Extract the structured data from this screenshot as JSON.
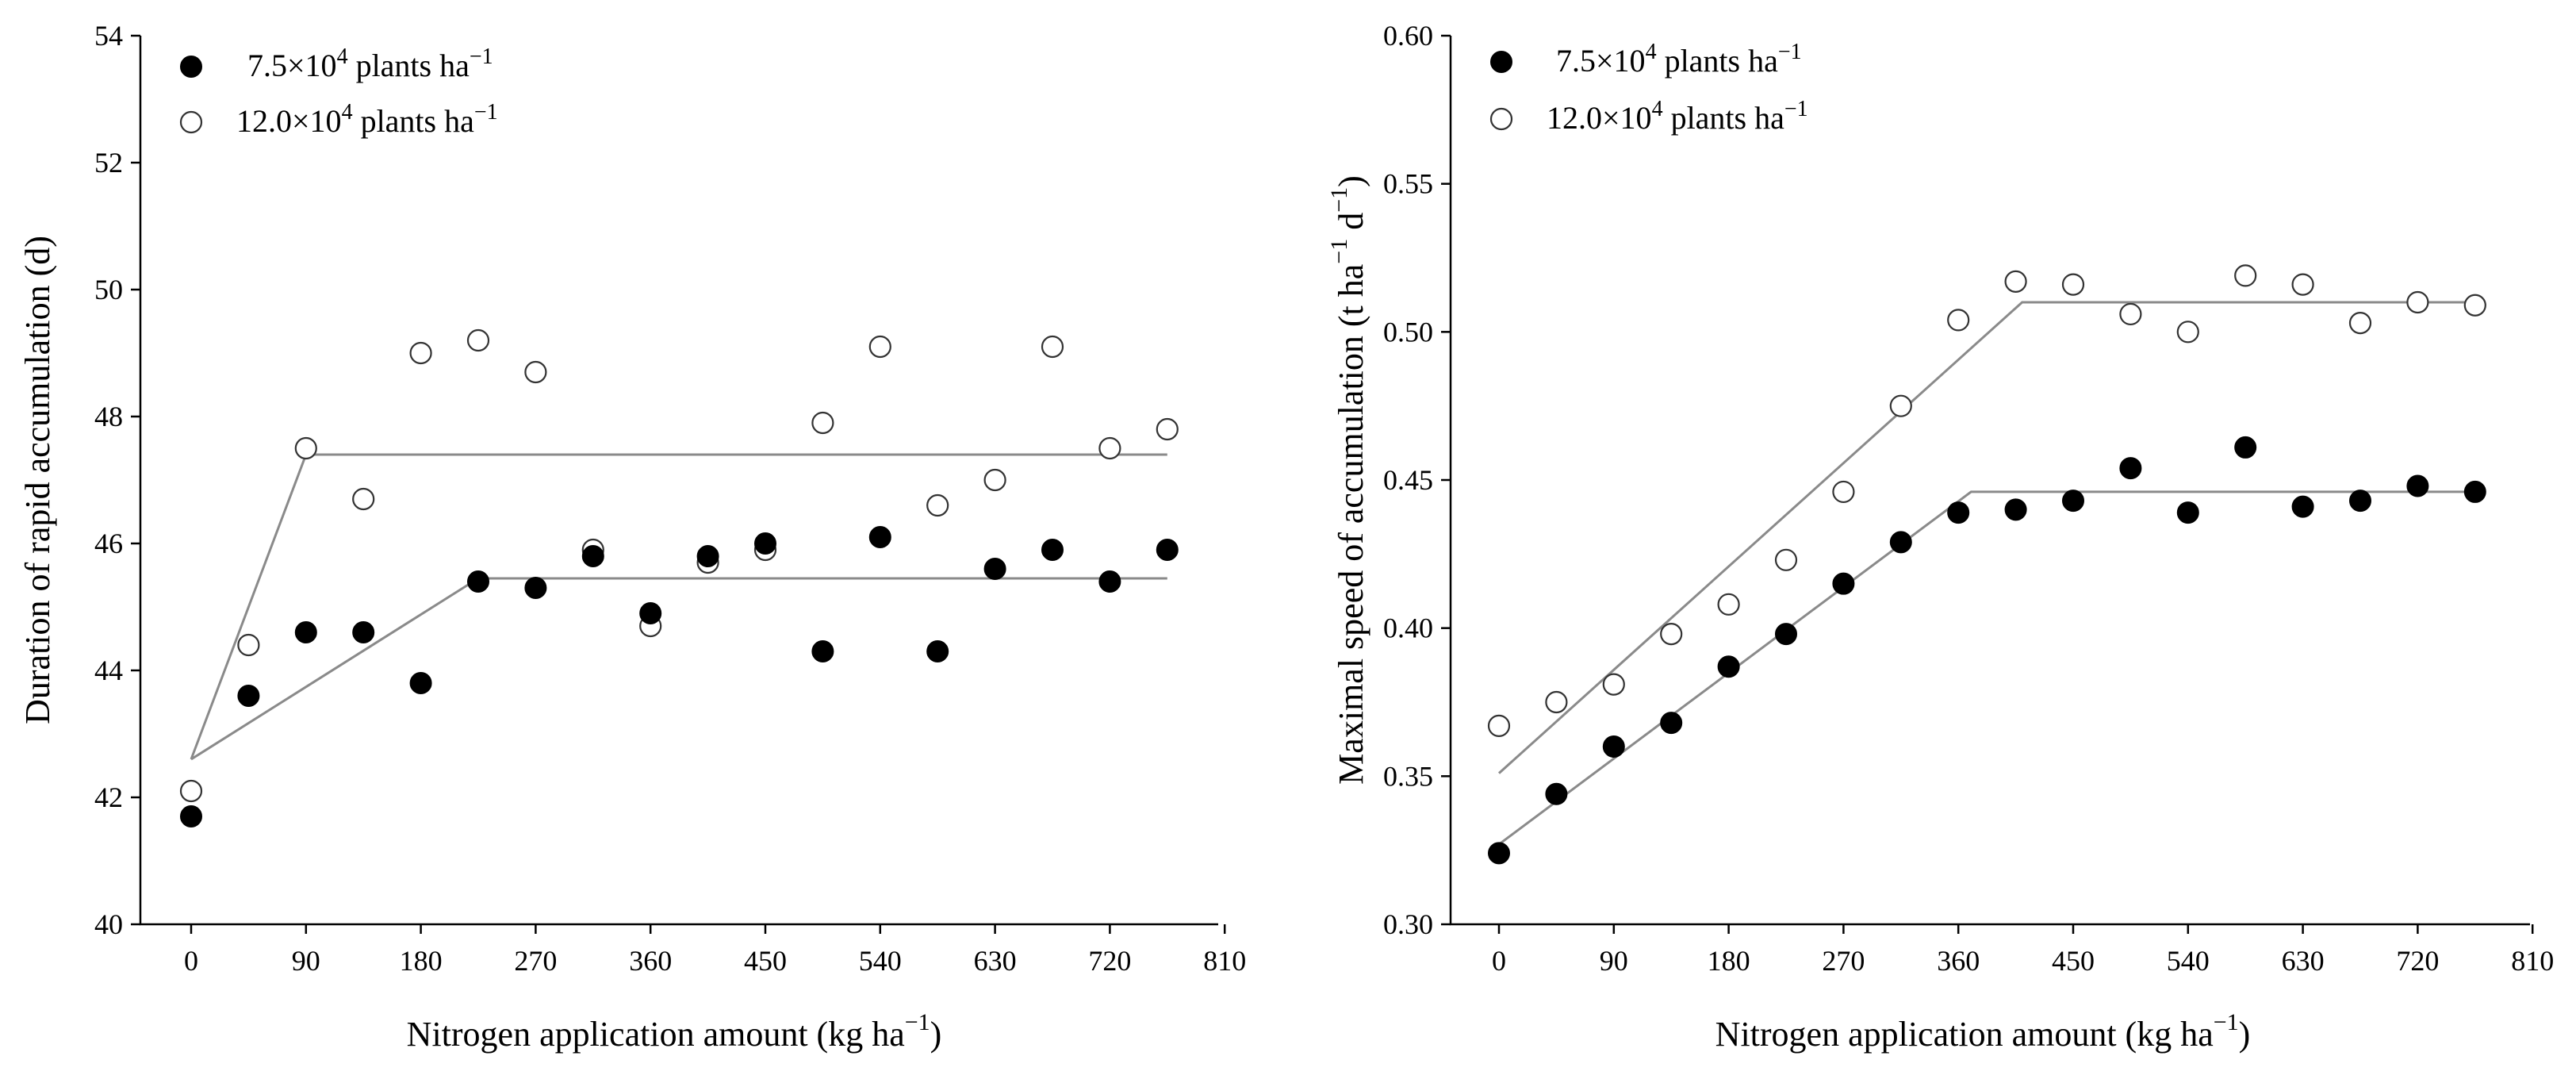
{
  "chart_data": [
    {
      "type": "scatter",
      "xlabel": "Nitrogen application amount (kg ha",
      "xlabel_sup": "−1",
      "xlabel_end": ")",
      "ylabel": "Duration of rapid accumulation (d)",
      "xlim": [
        -30,
        810
      ],
      "ylim": [
        40,
        54
      ],
      "xticks": [
        "0",
        "90",
        "180",
        "270",
        "360",
        "450",
        "540",
        "630",
        "720",
        "810"
      ],
      "yticks": [
        "40",
        "42",
        "44",
        "46",
        "48",
        "50",
        "52",
        "54"
      ],
      "x": [
        0,
        45,
        90,
        135,
        180,
        225,
        270,
        315,
        360,
        405,
        450,
        495,
        540,
        585,
        630,
        675,
        720,
        765
      ],
      "series": [
        {
          "name": "7.5×10",
          "name_sup": "4",
          "name_end": " plants ha",
          "name_end_sup": "−1",
          "marker": "filled-circle",
          "values": [
            41.7,
            43.6,
            44.6,
            44.6,
            43.8,
            45.4,
            45.3,
            45.8,
            44.9,
            45.8,
            46.0,
            44.3,
            46.1,
            44.3,
            45.6,
            45.9,
            45.4,
            45.9
          ],
          "fit": [
            [
              0,
              42.6
            ],
            [
              225,
              45.45
            ],
            [
              765,
              45.45
            ]
          ]
        },
        {
          "name": "12.0×10",
          "name_sup": "4",
          "name_end": " plants ha",
          "name_end_sup": "−1",
          "marker": "open-circle",
          "values": [
            42.1,
            44.4,
            47.5,
            46.7,
            49.0,
            49.2,
            48.7,
            45.9,
            44.7,
            45.7,
            45.9,
            47.9,
            49.1,
            46.6,
            47.0,
            49.1,
            47.5,
            47.8
          ],
          "fit": [
            [
              0,
              42.6
            ],
            [
              90,
              47.4
            ],
            [
              765,
              47.4
            ]
          ]
        }
      ]
    },
    {
      "type": "scatter",
      "xlabel": "Nitrogen application amount (kg ha",
      "xlabel_sup": "−1",
      "xlabel_end": ")",
      "ylabel": "Maximal speed of accumulation (t ha",
      "ylabel_sup1": "−1",
      "ylabel_mid": " d",
      "ylabel_sup2": "−1",
      "ylabel_end": ")",
      "xlim": [
        -30,
        810
      ],
      "ylim": [
        0.3,
        0.6
      ],
      "xticks": [
        "0",
        "90",
        "180",
        "270",
        "360",
        "450",
        "540",
        "630",
        "720",
        "810"
      ],
      "yticks": [
        "0.30",
        "0.35",
        "0.40",
        "0.45",
        "0.50",
        "0.55",
        "0.60"
      ],
      "x": [
        0,
        45,
        90,
        135,
        180,
        225,
        270,
        315,
        360,
        405,
        450,
        495,
        540,
        585,
        630,
        675,
        720,
        765
      ],
      "series": [
        {
          "name": "7.5×10",
          "name_sup": "4",
          "name_end": " plants ha",
          "name_end_sup": "−1",
          "marker": "filled-circle",
          "values": [
            0.324,
            0.344,
            0.36,
            0.368,
            0.387,
            0.398,
            0.415,
            0.429,
            0.439,
            0.44,
            0.443,
            0.454,
            0.439,
            0.461,
            0.441,
            0.443,
            0.448,
            0.446
          ],
          "fit": [
            [
              0,
              0.327
            ],
            [
              370,
              0.446
            ],
            [
              765,
              0.446
            ]
          ]
        },
        {
          "name": "12.0×10",
          "name_sup": "4",
          "name_end": " plants ha",
          "name_end_sup": "−1",
          "marker": "open-circle",
          "values": [
            0.367,
            0.375,
            0.381,
            0.398,
            0.408,
            0.423,
            0.446,
            0.475,
            0.504,
            0.517,
            0.516,
            0.506,
            0.5,
            0.519,
            0.516,
            0.503,
            0.51,
            0.509
          ],
          "fit": [
            [
              0,
              0.351
            ],
            [
              410,
              0.51
            ],
            [
              765,
              0.51
            ]
          ]
        }
      ]
    }
  ]
}
